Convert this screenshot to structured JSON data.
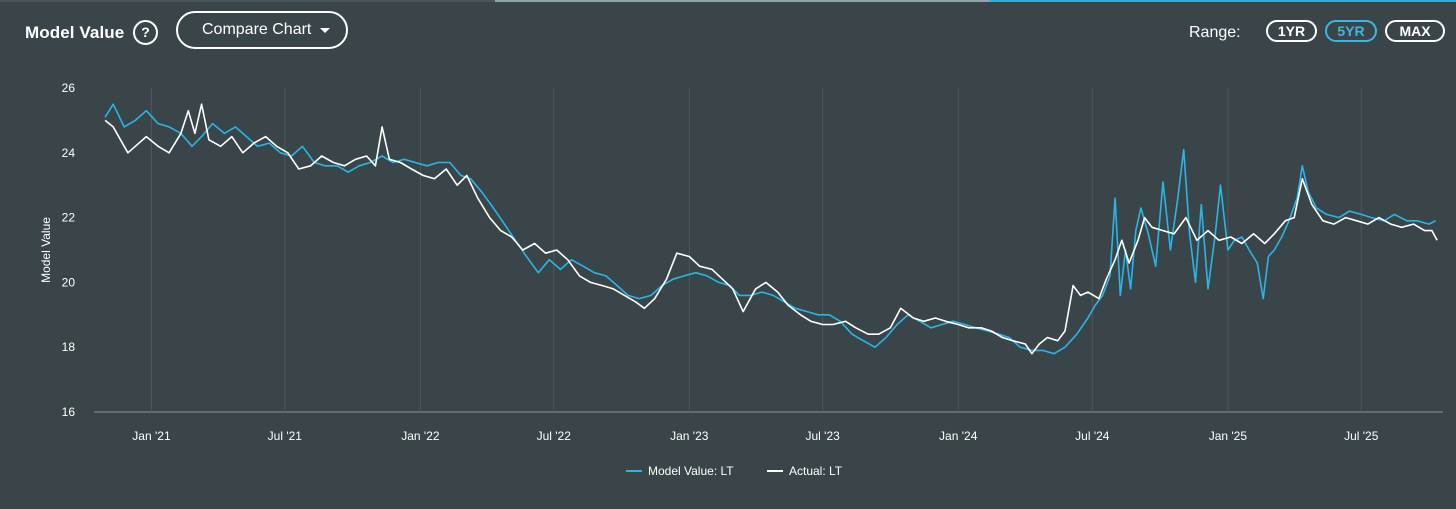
{
  "header": {
    "title": "Model Value",
    "help_symbol": "?",
    "compare_label": "Compare Chart",
    "range_label": "Range:",
    "range_options": [
      "1YR",
      "5YR",
      "MAX"
    ],
    "range_selected": "5YR"
  },
  "colors": {
    "background": "#3a4549",
    "model_series": "#29b6e6",
    "actual_series": "#ffffff",
    "active_range": "#3cb6e3"
  },
  "chart_data": {
    "type": "line",
    "title": "",
    "xlabel": "",
    "ylabel": "Model Value",
    "ylim": [
      16,
      26
    ],
    "yticks": [
      16,
      18,
      20,
      22,
      24,
      26
    ],
    "xlim": [
      "2020-10-15",
      "2025-10-20"
    ],
    "xticks": [
      {
        "date": "2021-01-01",
        "label": "Jan '21"
      },
      {
        "date": "2021-07-01",
        "label": "Jul '21"
      },
      {
        "date": "2022-01-01",
        "label": "Jan '22"
      },
      {
        "date": "2022-07-01",
        "label": "Jul '22"
      },
      {
        "date": "2023-01-01",
        "label": "Jan '23"
      },
      {
        "date": "2023-07-01",
        "label": "Jul '23"
      },
      {
        "date": "2024-01-01",
        "label": "Jan '24"
      },
      {
        "date": "2024-07-01",
        "label": "Jul '24"
      },
      {
        "date": "2025-01-01",
        "label": "Jan '25"
      },
      {
        "date": "2025-07-01",
        "label": "Jul '25"
      }
    ],
    "grid": "vertical",
    "legend_position": "bottom-center",
    "series": [
      {
        "name": "Model Value: LT",
        "points": [
          [
            "2020-10-30",
            25.1
          ],
          [
            "2020-11-10",
            25.5
          ],
          [
            "2020-11-25",
            24.8
          ],
          [
            "2020-12-10",
            25.0
          ],
          [
            "2020-12-25",
            25.3
          ],
          [
            "2021-01-10",
            24.9
          ],
          [
            "2021-01-25",
            24.8
          ],
          [
            "2021-02-10",
            24.6
          ],
          [
            "2021-02-25",
            24.2
          ],
          [
            "2021-03-10",
            24.5
          ],
          [
            "2021-03-25",
            24.9
          ],
          [
            "2021-04-10",
            24.6
          ],
          [
            "2021-04-25",
            24.8
          ],
          [
            "2021-05-10",
            24.5
          ],
          [
            "2021-05-25",
            24.2
          ],
          [
            "2021-06-10",
            24.3
          ],
          [
            "2021-06-25",
            24.0
          ],
          [
            "2021-07-10",
            23.9
          ],
          [
            "2021-07-25",
            24.2
          ],
          [
            "2021-08-10",
            23.7
          ],
          [
            "2021-08-25",
            23.6
          ],
          [
            "2021-09-10",
            23.6
          ],
          [
            "2021-09-25",
            23.4
          ],
          [
            "2021-10-10",
            23.6
          ],
          [
            "2021-10-25",
            23.7
          ],
          [
            "2021-11-10",
            23.9
          ],
          [
            "2021-11-25",
            23.7
          ],
          [
            "2021-12-10",
            23.8
          ],
          [
            "2021-12-25",
            23.7
          ],
          [
            "2022-01-10",
            23.6
          ],
          [
            "2022-01-25",
            23.7
          ],
          [
            "2022-02-10",
            23.7
          ],
          [
            "2022-02-25",
            23.3
          ],
          [
            "2022-03-10",
            23.2
          ],
          [
            "2022-03-25",
            22.8
          ],
          [
            "2022-04-10",
            22.3
          ],
          [
            "2022-04-25",
            21.8
          ],
          [
            "2022-05-10",
            21.3
          ],
          [
            "2022-05-25",
            20.8
          ],
          [
            "2022-06-10",
            20.3
          ],
          [
            "2022-06-25",
            20.7
          ],
          [
            "2022-07-10",
            20.4
          ],
          [
            "2022-07-25",
            20.7
          ],
          [
            "2022-08-10",
            20.5
          ],
          [
            "2022-08-25",
            20.3
          ],
          [
            "2022-09-10",
            20.2
          ],
          [
            "2022-09-25",
            19.9
          ],
          [
            "2022-10-10",
            19.6
          ],
          [
            "2022-10-25",
            19.5
          ],
          [
            "2022-11-10",
            19.6
          ],
          [
            "2022-11-25",
            19.9
          ],
          [
            "2022-12-10",
            20.1
          ],
          [
            "2022-12-25",
            20.2
          ],
          [
            "2023-01-10",
            20.3
          ],
          [
            "2023-01-25",
            20.2
          ],
          [
            "2023-02-10",
            20.0
          ],
          [
            "2023-02-25",
            19.9
          ],
          [
            "2023-03-10",
            19.6
          ],
          [
            "2023-03-25",
            19.6
          ],
          [
            "2023-04-10",
            19.7
          ],
          [
            "2023-04-25",
            19.6
          ],
          [
            "2023-05-10",
            19.4
          ],
          [
            "2023-05-25",
            19.2
          ],
          [
            "2023-06-10",
            19.1
          ],
          [
            "2023-06-25",
            19.0
          ],
          [
            "2023-07-10",
            19.0
          ],
          [
            "2023-07-25",
            18.8
          ],
          [
            "2023-08-10",
            18.4
          ],
          [
            "2023-08-25",
            18.2
          ],
          [
            "2023-09-10",
            18.0
          ],
          [
            "2023-09-25",
            18.3
          ],
          [
            "2023-10-10",
            18.7
          ],
          [
            "2023-10-25",
            19.0
          ],
          [
            "2023-11-10",
            18.8
          ],
          [
            "2023-11-25",
            18.6
          ],
          [
            "2023-12-10",
            18.7
          ],
          [
            "2023-12-25",
            18.8
          ],
          [
            "2024-01-10",
            18.7
          ],
          [
            "2024-01-25",
            18.6
          ],
          [
            "2024-02-10",
            18.5
          ],
          [
            "2024-02-25",
            18.4
          ],
          [
            "2024-03-10",
            18.3
          ],
          [
            "2024-03-25",
            18.0
          ],
          [
            "2024-04-10",
            17.9
          ],
          [
            "2024-04-25",
            17.9
          ],
          [
            "2024-05-10",
            17.8
          ],
          [
            "2024-05-25",
            18.0
          ],
          [
            "2024-06-10",
            18.4
          ],
          [
            "2024-06-25",
            18.9
          ],
          [
            "2024-07-05",
            19.3
          ],
          [
            "2024-07-15",
            19.6
          ],
          [
            "2024-07-25",
            20.2
          ],
          [
            "2024-08-01",
            22.6
          ],
          [
            "2024-08-08",
            19.6
          ],
          [
            "2024-08-15",
            21.0
          ],
          [
            "2024-08-22",
            19.8
          ],
          [
            "2024-08-29",
            21.6
          ],
          [
            "2024-09-05",
            22.3
          ],
          [
            "2024-09-15",
            21.5
          ],
          [
            "2024-09-25",
            20.5
          ],
          [
            "2024-10-05",
            23.1
          ],
          [
            "2024-10-15",
            21.0
          ],
          [
            "2024-10-25",
            22.6
          ],
          [
            "2024-11-02",
            24.1
          ],
          [
            "2024-11-10",
            21.5
          ],
          [
            "2024-11-18",
            20.0
          ],
          [
            "2024-11-26",
            22.4
          ],
          [
            "2024-12-05",
            19.8
          ],
          [
            "2024-12-15",
            21.5
          ],
          [
            "2024-12-22",
            23.0
          ],
          [
            "2025-01-01",
            21.0
          ],
          [
            "2025-01-10",
            21.3
          ],
          [
            "2025-01-20",
            21.4
          ],
          [
            "2025-01-30",
            21.0
          ],
          [
            "2025-02-10",
            20.6
          ],
          [
            "2025-02-18",
            19.5
          ],
          [
            "2025-02-25",
            20.8
          ],
          [
            "2025-03-05",
            21.0
          ],
          [
            "2025-03-15",
            21.4
          ],
          [
            "2025-03-25",
            21.9
          ],
          [
            "2025-04-05",
            22.6
          ],
          [
            "2025-04-12",
            23.6
          ],
          [
            "2025-04-20",
            22.8
          ],
          [
            "2025-05-01",
            22.3
          ],
          [
            "2025-05-15",
            22.1
          ],
          [
            "2025-06-01",
            22.0
          ],
          [
            "2025-06-15",
            22.2
          ],
          [
            "2025-07-01",
            22.1
          ],
          [
            "2025-07-15",
            22.0
          ],
          [
            "2025-08-01",
            21.9
          ],
          [
            "2025-08-15",
            22.1
          ],
          [
            "2025-09-01",
            21.9
          ],
          [
            "2025-09-15",
            21.9
          ],
          [
            "2025-10-01",
            21.8
          ],
          [
            "2025-10-10",
            21.9
          ]
        ]
      },
      {
        "name": "Actual: LT",
        "points": [
          [
            "2020-10-30",
            25.0
          ],
          [
            "2020-11-10",
            24.8
          ],
          [
            "2020-11-20",
            24.4
          ],
          [
            "2020-11-30",
            24.0
          ],
          [
            "2020-12-10",
            24.2
          ],
          [
            "2020-12-25",
            24.5
          ],
          [
            "2021-01-10",
            24.2
          ],
          [
            "2021-01-25",
            24.0
          ],
          [
            "2021-02-10",
            24.6
          ],
          [
            "2021-02-20",
            25.3
          ],
          [
            "2021-03-01",
            24.6
          ],
          [
            "2021-03-10",
            25.5
          ],
          [
            "2021-03-20",
            24.4
          ],
          [
            "2021-04-05",
            24.2
          ],
          [
            "2021-04-20",
            24.5
          ],
          [
            "2021-05-05",
            24.0
          ],
          [
            "2021-05-20",
            24.3
          ],
          [
            "2021-06-05",
            24.5
          ],
          [
            "2021-06-20",
            24.2
          ],
          [
            "2021-07-05",
            24.0
          ],
          [
            "2021-07-20",
            23.5
          ],
          [
            "2021-08-05",
            23.6
          ],
          [
            "2021-08-20",
            23.9
          ],
          [
            "2021-09-05",
            23.7
          ],
          [
            "2021-09-20",
            23.6
          ],
          [
            "2021-10-05",
            23.8
          ],
          [
            "2021-10-20",
            23.9
          ],
          [
            "2021-11-01",
            23.6
          ],
          [
            "2021-11-10",
            24.8
          ],
          [
            "2021-11-20",
            23.8
          ],
          [
            "2021-12-05",
            23.7
          ],
          [
            "2021-12-20",
            23.5
          ],
          [
            "2022-01-05",
            23.3
          ],
          [
            "2022-01-20",
            23.2
          ],
          [
            "2022-02-05",
            23.5
          ],
          [
            "2022-02-20",
            23.0
          ],
          [
            "2022-03-05",
            23.3
          ],
          [
            "2022-03-20",
            22.6
          ],
          [
            "2022-04-05",
            22.0
          ],
          [
            "2022-04-20",
            21.6
          ],
          [
            "2022-05-05",
            21.4
          ],
          [
            "2022-05-20",
            21.0
          ],
          [
            "2022-06-05",
            21.2
          ],
          [
            "2022-06-20",
            20.9
          ],
          [
            "2022-07-05",
            21.0
          ],
          [
            "2022-07-20",
            20.7
          ],
          [
            "2022-08-05",
            20.2
          ],
          [
            "2022-08-20",
            20.0
          ],
          [
            "2022-09-05",
            19.9
          ],
          [
            "2022-09-20",
            19.8
          ],
          [
            "2022-10-05",
            19.6
          ],
          [
            "2022-10-20",
            19.4
          ],
          [
            "2022-11-01",
            19.2
          ],
          [
            "2022-11-15",
            19.5
          ],
          [
            "2022-12-01",
            20.1
          ],
          [
            "2022-12-15",
            20.9
          ],
          [
            "2023-01-01",
            20.8
          ],
          [
            "2023-01-15",
            20.5
          ],
          [
            "2023-02-01",
            20.4
          ],
          [
            "2023-02-15",
            20.1
          ],
          [
            "2023-03-01",
            19.8
          ],
          [
            "2023-03-15",
            19.1
          ],
          [
            "2023-04-01",
            19.8
          ],
          [
            "2023-04-15",
            20.0
          ],
          [
            "2023-05-01",
            19.7
          ],
          [
            "2023-05-15",
            19.3
          ],
          [
            "2023-06-01",
            19.0
          ],
          [
            "2023-06-15",
            18.8
          ],
          [
            "2023-07-01",
            18.7
          ],
          [
            "2023-07-15",
            18.7
          ],
          [
            "2023-08-01",
            18.8
          ],
          [
            "2023-08-15",
            18.6
          ],
          [
            "2023-09-01",
            18.4
          ],
          [
            "2023-09-15",
            18.4
          ],
          [
            "2023-10-01",
            18.6
          ],
          [
            "2023-10-15",
            19.2
          ],
          [
            "2023-11-01",
            18.9
          ],
          [
            "2023-11-15",
            18.8
          ],
          [
            "2023-12-01",
            18.9
          ],
          [
            "2023-12-15",
            18.8
          ],
          [
            "2024-01-01",
            18.7
          ],
          [
            "2024-01-15",
            18.6
          ],
          [
            "2024-02-01",
            18.6
          ],
          [
            "2024-02-15",
            18.5
          ],
          [
            "2024-03-01",
            18.3
          ],
          [
            "2024-03-15",
            18.2
          ],
          [
            "2024-04-01",
            18.1
          ],
          [
            "2024-04-10",
            17.8
          ],
          [
            "2024-04-20",
            18.1
          ],
          [
            "2024-05-01",
            18.3
          ],
          [
            "2024-05-15",
            18.2
          ],
          [
            "2024-05-25",
            18.5
          ],
          [
            "2024-06-05",
            19.9
          ],
          [
            "2024-06-15",
            19.6
          ],
          [
            "2024-06-25",
            19.7
          ],
          [
            "2024-07-10",
            19.5
          ],
          [
            "2024-07-20",
            20.1
          ],
          [
            "2024-08-01",
            20.7
          ],
          [
            "2024-08-10",
            21.3
          ],
          [
            "2024-08-20",
            20.6
          ],
          [
            "2024-09-01",
            21.3
          ],
          [
            "2024-09-10",
            22.0
          ],
          [
            "2024-09-20",
            21.7
          ],
          [
            "2024-10-05",
            21.6
          ],
          [
            "2024-10-20",
            21.5
          ],
          [
            "2024-11-05",
            22.0
          ],
          [
            "2024-11-20",
            21.3
          ],
          [
            "2024-12-05",
            21.6
          ],
          [
            "2024-12-20",
            21.3
          ],
          [
            "2025-01-05",
            21.4
          ],
          [
            "2025-01-20",
            21.2
          ],
          [
            "2025-02-05",
            21.5
          ],
          [
            "2025-02-20",
            21.2
          ],
          [
            "2025-03-05",
            21.5
          ],
          [
            "2025-03-20",
            21.9
          ],
          [
            "2025-04-01",
            22.0
          ],
          [
            "2025-04-12",
            23.2
          ],
          [
            "2025-04-25",
            22.4
          ],
          [
            "2025-05-10",
            21.9
          ],
          [
            "2025-05-25",
            21.8
          ],
          [
            "2025-06-10",
            22.0
          ],
          [
            "2025-06-25",
            21.9
          ],
          [
            "2025-07-10",
            21.8
          ],
          [
            "2025-07-25",
            22.0
          ],
          [
            "2025-08-10",
            21.8
          ],
          [
            "2025-08-25",
            21.7
          ],
          [
            "2025-09-10",
            21.8
          ],
          [
            "2025-09-25",
            21.6
          ],
          [
            "2025-10-05",
            21.6
          ],
          [
            "2025-10-12",
            21.3
          ]
        ]
      }
    ]
  }
}
